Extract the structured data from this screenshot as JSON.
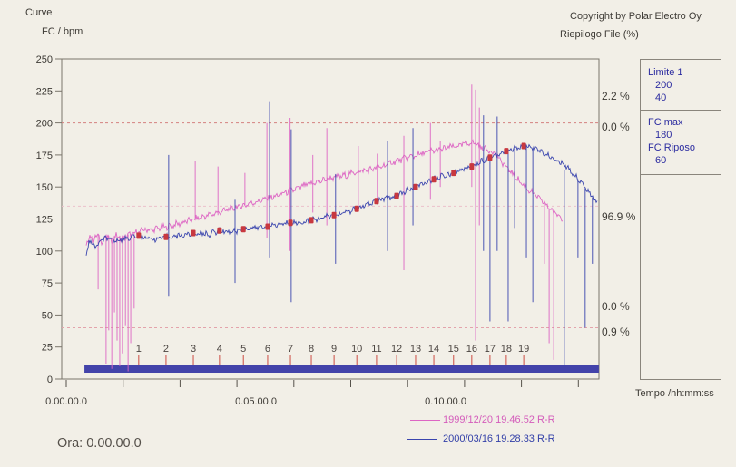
{
  "header": {
    "title": "Curve",
    "y_axis_units": "FC / bpm",
    "copyright": "Copyright by Polar Electro Oy",
    "summary_label": "Riepilogo File (%)"
  },
  "side_panel": {
    "limit_label": "Limite 1",
    "limit_upper": "200",
    "limit_lower": "40",
    "fc_max_label": "FC max",
    "fc_max": "180",
    "fc_rest_label": "FC Riposo",
    "fc_rest": "60"
  },
  "zone_percentages": [
    {
      "label": "2.2 %",
      "bpm": 220
    },
    {
      "label": "0.0 %",
      "bpm": 196
    },
    {
      "label": "96.9 %",
      "bpm": 126
    },
    {
      "label": "0.0 %",
      "bpm": 56
    },
    {
      "label": "0.9 %",
      "bpm": 36
    }
  ],
  "footer": {
    "x_axis_label": "Tempo /hh:mm:ss",
    "cursor_time_label": "Ora: 0.00.00.0"
  },
  "legend": [
    {
      "label": "1999/12/20 19.46.52 R-R",
      "color": "#d45cbb"
    },
    {
      "label": "2000/03/16 19.28.33 R-R",
      "color": "#3340a8"
    }
  ],
  "colors": {
    "background": "#f2efe7",
    "axis": "#7a756b",
    "text": "#3d3a35",
    "panel_text": "#2c2ca0",
    "bar": "#4343aa",
    "lap_tick": "#cc4b42",
    "marker": "#c8383f",
    "limit_strong": "#d4807f",
    "limit_soft": "#e8b4bd"
  },
  "chart_data": {
    "type": "line",
    "title": "Curve",
    "xlabel": "Tempo /hh:mm:ss",
    "ylabel": "FC / bpm",
    "ylim": [
      0,
      250
    ],
    "ytick_step": 25,
    "xlim_minutes": [
      0,
      14.1
    ],
    "xticks": [
      {
        "t": 0,
        "label": "0.00.00.0"
      },
      {
        "t": 5,
        "label": "0.05.00.0"
      },
      {
        "t": 10,
        "label": "0.10.00.0"
      }
    ],
    "minor_xtick_step_minutes": 1.5,
    "limit_lines": [
      {
        "bpm": 200,
        "color": "#d4807f"
      },
      {
        "bpm": 135,
        "color": "#ecc0ca"
      },
      {
        "bpm": 40,
        "color": "#e3a3ab"
      }
    ],
    "lap_times_minutes": [
      1.91,
      2.63,
      3.35,
      4.04,
      4.67,
      5.31,
      5.91,
      6.46,
      7.06,
      7.66,
      8.18,
      8.71,
      9.21,
      9.69,
      10.21,
      10.69,
      11.17,
      11.6,
      12.06
    ],
    "session_bar": {
      "t_start": 0.48,
      "t_end": 14.04
    },
    "series": [
      {
        "name": "1999/12/20 19.46.52 R-R",
        "color": "#dd66c4",
        "noise_bpm": 2.2,
        "points": [
          [
            0.53,
            104
          ],
          [
            0.62,
            112
          ],
          [
            0.72,
            108
          ],
          [
            0.84,
            113
          ],
          [
            0.93,
            106
          ],
          [
            1.03,
            112
          ],
          [
            1.17,
            108
          ],
          [
            1.32,
            112
          ],
          [
            1.46,
            109
          ],
          [
            1.6,
            112
          ],
          [
            1.75,
            113
          ],
          [
            1.91,
            115
          ],
          [
            2.08,
            117
          ],
          [
            2.27,
            116
          ],
          [
            2.44,
            118
          ],
          [
            2.68,
            119
          ],
          [
            2.92,
            121
          ],
          [
            3.16,
            123
          ],
          [
            3.4,
            125
          ],
          [
            3.64,
            127
          ],
          [
            3.88,
            129
          ],
          [
            4.11,
            131
          ],
          [
            4.35,
            133
          ],
          [
            4.59,
            135
          ],
          [
            4.83,
            137
          ],
          [
            5.07,
            139
          ],
          [
            5.31,
            141
          ],
          [
            5.55,
            143
          ],
          [
            5.79,
            146
          ],
          [
            6.03,
            148
          ],
          [
            6.27,
            151
          ],
          [
            6.51,
            153
          ],
          [
            6.75,
            155
          ],
          [
            6.99,
            157
          ],
          [
            7.22,
            158
          ],
          [
            7.46,
            160
          ],
          [
            7.7,
            162
          ],
          [
            7.94,
            163
          ],
          [
            8.18,
            165
          ],
          [
            8.42,
            167
          ],
          [
            8.66,
            170
          ],
          [
            8.9,
            172
          ],
          [
            9.14,
            174
          ],
          [
            9.38,
            176
          ],
          [
            9.62,
            178
          ],
          [
            9.86,
            179
          ],
          [
            10.1,
            181
          ],
          [
            10.33,
            182
          ],
          [
            10.57,
            184
          ],
          [
            10.74,
            185
          ],
          [
            10.93,
            181
          ],
          [
            11.12,
            179
          ],
          [
            11.29,
            177
          ],
          [
            11.46,
            170
          ],
          [
            11.65,
            164
          ],
          [
            11.84,
            158
          ],
          [
            12.03,
            152
          ],
          [
            12.22,
            147
          ],
          [
            12.42,
            142
          ],
          [
            12.61,
            137
          ],
          [
            12.8,
            132
          ],
          [
            12.94,
            128
          ],
          [
            13.09,
            126
          ]
        ],
        "spikes": [
          [
            0.84,
            70,
            113
          ],
          [
            1.05,
            12,
            112
          ],
          [
            1.12,
            38,
            112
          ],
          [
            1.2,
            8,
            110
          ],
          [
            1.27,
            52,
            112
          ],
          [
            1.34,
            30,
            111
          ],
          [
            1.41,
            10,
            112
          ],
          [
            1.48,
            20,
            112
          ],
          [
            1.56,
            42,
            113
          ],
          [
            1.63,
            6,
            113
          ],
          [
            1.7,
            28,
            113
          ],
          [
            1.79,
            55,
            114
          ],
          [
            3.4,
            125,
            170
          ],
          [
            4.0,
            128,
            166
          ],
          [
            4.71,
            136,
            161
          ],
          [
            5.29,
            110,
            200
          ],
          [
            5.9,
            100,
            204
          ],
          [
            6.5,
            130,
            175
          ],
          [
            6.87,
            120,
            196
          ],
          [
            7.7,
            135,
            182
          ],
          [
            8.2,
            140,
            176
          ],
          [
            8.9,
            85,
            190
          ],
          [
            9.6,
            140,
            200
          ],
          [
            9.86,
            150,
            186
          ],
          [
            10.69,
            150,
            230
          ],
          [
            10.79,
            30,
            226
          ],
          [
            10.89,
            120,
            212
          ],
          [
            12.61,
            90,
            137
          ],
          [
            12.73,
            28,
            133
          ],
          [
            12.85,
            15,
            130
          ]
        ],
        "lap_markers": false
      },
      {
        "name": "2000/03/16 19.28.33 R-R",
        "color": "#3a45ae",
        "noise_bpm": 1.8,
        "points": [
          [
            0.53,
            97
          ],
          [
            0.6,
            108
          ],
          [
            0.77,
            103
          ],
          [
            1.0,
            110
          ],
          [
            1.24,
            108
          ],
          [
            1.6,
            110
          ],
          [
            1.91,
            112
          ],
          [
            2.32,
            109
          ],
          [
            2.63,
            111
          ],
          [
            3.04,
            112
          ],
          [
            3.35,
            114
          ],
          [
            3.76,
            113
          ],
          [
            4.04,
            116
          ],
          [
            4.35,
            115
          ],
          [
            4.67,
            117
          ],
          [
            4.95,
            118
          ],
          [
            5.31,
            119
          ],
          [
            5.67,
            121
          ],
          [
            5.91,
            122
          ],
          [
            6.15,
            122
          ],
          [
            6.46,
            124
          ],
          [
            6.75,
            126
          ],
          [
            7.06,
            128
          ],
          [
            7.34,
            130
          ],
          [
            7.66,
            133
          ],
          [
            7.94,
            136
          ],
          [
            8.18,
            139
          ],
          [
            8.42,
            141
          ],
          [
            8.71,
            143
          ],
          [
            8.95,
            147
          ],
          [
            9.21,
            150
          ],
          [
            9.45,
            153
          ],
          [
            9.69,
            156
          ],
          [
            9.98,
            159
          ],
          [
            10.21,
            161
          ],
          [
            10.45,
            164
          ],
          [
            10.69,
            166
          ],
          [
            10.93,
            170
          ],
          [
            11.17,
            173
          ],
          [
            11.41,
            176
          ],
          [
            11.6,
            178
          ],
          [
            11.84,
            180
          ],
          [
            12.06,
            182
          ],
          [
            12.25,
            181
          ],
          [
            12.49,
            178
          ],
          [
            12.73,
            174
          ],
          [
            12.97,
            170
          ],
          [
            13.21,
            165
          ],
          [
            13.44,
            158
          ],
          [
            13.68,
            150
          ],
          [
            13.85,
            143
          ],
          [
            14.0,
            138
          ]
        ],
        "spikes": [
          [
            2.7,
            65,
            175
          ],
          [
            4.45,
            75,
            140
          ],
          [
            5.36,
            95,
            217
          ],
          [
            5.93,
            60,
            195
          ],
          [
            7.1,
            90,
            160
          ],
          [
            8.47,
            100,
            186
          ],
          [
            9.14,
            120,
            196
          ],
          [
            11.0,
            100,
            206
          ],
          [
            11.17,
            45,
            173
          ],
          [
            11.36,
            100,
            205
          ],
          [
            11.65,
            45,
            180
          ],
          [
            11.82,
            118,
            180
          ],
          [
            12.13,
            95,
            181
          ],
          [
            12.3,
            60,
            180
          ],
          [
            13.13,
            10,
            163
          ],
          [
            13.49,
            95,
            156
          ],
          [
            13.68,
            40,
            149
          ],
          [
            13.87,
            90,
            142
          ]
        ],
        "lap_markers": true
      }
    ]
  }
}
